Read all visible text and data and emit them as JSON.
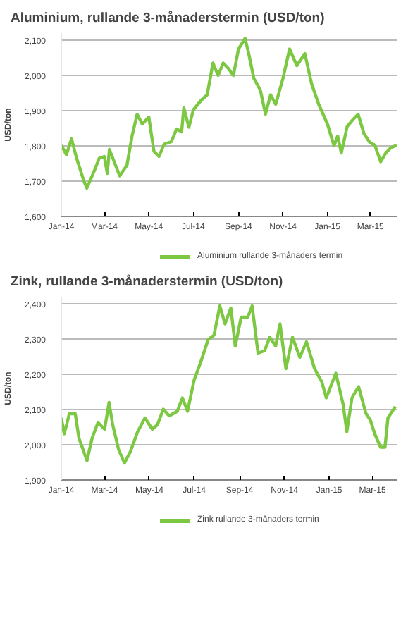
{
  "chart_data": [
    {
      "type": "line",
      "title": "Aluminium, rullande 3-månaderstermin (USD/ton)",
      "ylabel": "USD/ton",
      "grid": "y",
      "legend": "bottom",
      "marker": "none",
      "line_style": "solid",
      "xlim": [
        "2014-01-01",
        "2015-04-06"
      ],
      "xticks": [
        {
          "value": "2014-01-01",
          "label": "Jan-14"
        },
        {
          "value": "2014-03-01",
          "label": "Mar-14"
        },
        {
          "value": "2014-05-01",
          "label": "May-14"
        },
        {
          "value": "2014-07-01",
          "label": "Jul-14"
        },
        {
          "value": "2014-09-01",
          "label": "Sep-14"
        },
        {
          "value": "2014-11-01",
          "label": "Nov-14"
        },
        {
          "value": "2015-01-01",
          "label": "Jan-15"
        },
        {
          "value": "2015-03-01",
          "label": "Mar-15"
        }
      ],
      "ylim": [
        1600,
        2120
      ],
      "yticks": [
        {
          "value": 1600,
          "label": "1,600"
        },
        {
          "value": 1700,
          "label": "1,700"
        },
        {
          "value": 1800,
          "label": "1,800"
        },
        {
          "value": 1900,
          "label": "1,900"
        },
        {
          "value": 2000,
          "label": "2,000"
        },
        {
          "value": 2100,
          "label": "2,100"
        }
      ],
      "x": [
        "2014-01-01",
        "2014-01-08",
        "2014-01-15",
        "2014-01-22",
        "2014-02-01",
        "2014-02-05",
        "2014-02-15",
        "2014-02-22",
        "2014-03-01",
        "2014-03-05",
        "2014-03-08",
        "2014-03-22",
        "2014-04-01",
        "2014-04-08",
        "2014-04-15",
        "2014-04-22",
        "2014-05-01",
        "2014-05-08",
        "2014-05-15",
        "2014-05-22",
        "2014-06-01",
        "2014-06-08",
        "2014-06-15",
        "2014-06-18",
        "2014-06-25",
        "2014-07-01",
        "2014-07-12",
        "2014-07-20",
        "2014-07-28",
        "2014-08-04",
        "2014-08-11",
        "2014-08-18",
        "2014-08-25",
        "2014-09-01",
        "2014-09-10",
        "2014-09-15",
        "2014-09-22",
        "2014-10-01",
        "2014-10-08",
        "2014-10-15",
        "2014-10-22",
        "2014-11-01",
        "2014-11-10",
        "2014-11-20",
        "2014-12-01",
        "2014-12-10",
        "2014-12-20",
        "2015-01-01",
        "2015-01-10",
        "2015-01-15",
        "2015-01-20",
        "2015-01-28",
        "2015-02-05",
        "2015-02-12",
        "2015-02-20",
        "2015-02-28",
        "2015-03-07",
        "2015-03-15",
        "2015-03-22",
        "2015-03-29",
        "2015-04-06"
      ],
      "series": [
        {
          "name": "Aluminium rullande 3-månaders termin",
          "color": "#7dc842",
          "values": [
            1802,
            1775,
            1820,
            1765,
            1700,
            1680,
            1728,
            1765,
            1770,
            1722,
            1790,
            1715,
            1745,
            1828,
            1890,
            1862,
            1882,
            1785,
            1770,
            1805,
            1812,
            1848,
            1840,
            1908,
            1853,
            1902,
            1930,
            1945,
            2035,
            2000,
            2035,
            2020,
            2000,
            2075,
            2105,
            2062,
            1992,
            1958,
            1890,
            1945,
            1918,
            1992,
            2075,
            2028,
            2062,
            1978,
            1918,
            1862,
            1800,
            1828,
            1780,
            1855,
            1875,
            1890,
            1835,
            1810,
            1802,
            1755,
            1780,
            1795,
            1802
          ]
        }
      ]
    },
    {
      "type": "line",
      "title": "Zink, rullande 3-månaderstermin (USD/ton)",
      "ylabel": "USD/ton",
      "grid": "y",
      "legend": "bottom",
      "marker": "none",
      "line_style": "solid",
      "xlim": [
        "2014-01-01",
        "2015-04-03"
      ],
      "xticks": [
        {
          "value": "2014-01-01",
          "label": "Jan-14"
        },
        {
          "value": "2014-03-01",
          "label": "Mar-14"
        },
        {
          "value": "2014-05-01",
          "label": "May-14"
        },
        {
          "value": "2014-07-01",
          "label": "Jul-14"
        },
        {
          "value": "2014-09-01",
          "label": "Sep-14"
        },
        {
          "value": "2014-11-01",
          "label": "Nov-14"
        },
        {
          "value": "2015-01-01",
          "label": "Jan-15"
        },
        {
          "value": "2015-03-01",
          "label": "Mar-15"
        }
      ],
      "ylim": [
        1900,
        2420
      ],
      "yticks": [
        {
          "value": 1900,
          "label": "1,900"
        },
        {
          "value": 2000,
          "label": "2,000"
        },
        {
          "value": 2100,
          "label": "2,100"
        },
        {
          "value": 2200,
          "label": "2,200"
        },
        {
          "value": 2300,
          "label": "2,300"
        },
        {
          "value": 2400,
          "label": "2,400"
        }
      ],
      "x": [
        "2014-01-01",
        "2014-01-05",
        "2014-01-12",
        "2014-01-20",
        "2014-01-25",
        "2014-02-05",
        "2014-02-12",
        "2014-02-20",
        "2014-03-01",
        "2014-03-07",
        "2014-03-12",
        "2014-03-20",
        "2014-03-28",
        "2014-04-05",
        "2014-04-15",
        "2014-04-25",
        "2014-05-05",
        "2014-05-12",
        "2014-05-20",
        "2014-05-28",
        "2014-06-08",
        "2014-06-15",
        "2014-06-22",
        "2014-07-01",
        "2014-07-10",
        "2014-07-20",
        "2014-07-28",
        "2014-08-05",
        "2014-08-12",
        "2014-08-20",
        "2014-08-26",
        "2014-09-03",
        "2014-09-12",
        "2014-09-18",
        "2014-09-26",
        "2014-10-05",
        "2014-10-12",
        "2014-10-20",
        "2014-10-26",
        "2014-11-03",
        "2014-11-12",
        "2014-11-22",
        "2014-12-01",
        "2014-12-12",
        "2014-12-22",
        "2014-12-28",
        "2015-01-10",
        "2015-01-20",
        "2015-01-25",
        "2015-02-01",
        "2015-02-10",
        "2015-02-20",
        "2015-02-26",
        "2015-03-04",
        "2015-03-12",
        "2015-03-18",
        "2015-03-22",
        "2015-04-01"
      ],
      "series": [
        {
          "name": "Zink rullande 3-månaders termin",
          "color": "#7dc842",
          "values": [
            2076,
            2031,
            2088,
            2088,
            2019,
            1955,
            2019,
            2063,
            2044,
            2120,
            2057,
            1987,
            1948,
            1980,
            2037,
            2076,
            2044,
            2057,
            2101,
            2082,
            2095,
            2133,
            2095,
            2184,
            2235,
            2298,
            2311,
            2394,
            2343,
            2388,
            2280,
            2362,
            2362,
            2394,
            2260,
            2267,
            2305,
            2280,
            2343,
            2216,
            2305,
            2248,
            2292,
            2216,
            2178,
            2133,
            2203,
            2114,
            2037,
            2133,
            2165,
            2089,
            2070,
            2031,
            1993,
            1993,
            2076,
            2108
          ]
        }
      ]
    }
  ]
}
